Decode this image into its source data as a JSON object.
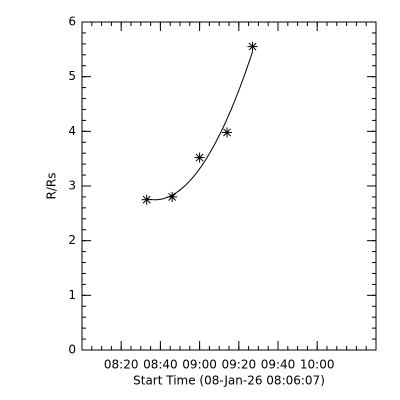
{
  "chart_data": {
    "type": "scatter",
    "x_label": "Start Time (08-Jan-26 08:06:07)",
    "y_label": "R/Rs",
    "x": [
      "08:33",
      "08:46",
      "09:00",
      "09:14",
      "09:27"
    ],
    "values": [
      2.75,
      2.8,
      3.52,
      3.98,
      5.55
    ],
    "color": "#000000",
    "xlim": [
      "08:00",
      "10:30"
    ],
    "xticks": [
      "08:20",
      "08:40",
      "09:00",
      "09:20",
      "09:40",
      "10:00"
    ],
    "ylim": [
      0,
      6
    ],
    "yticks": [
      0,
      1,
      2,
      3,
      4,
      5,
      6
    ],
    "fit": true
  }
}
